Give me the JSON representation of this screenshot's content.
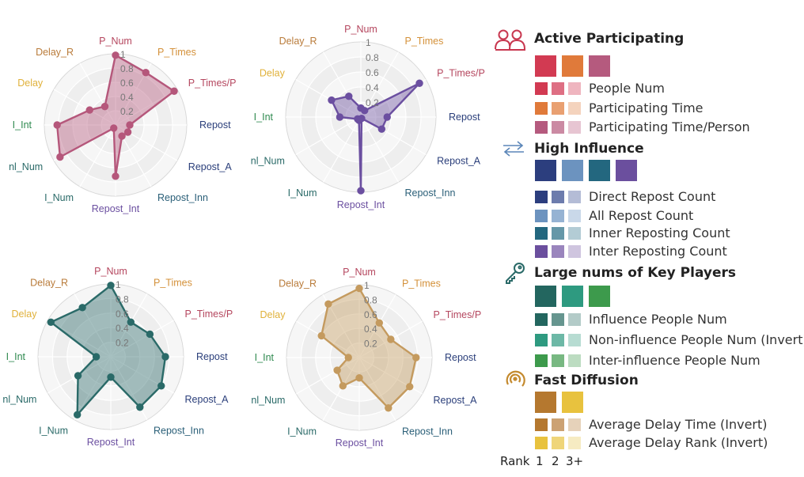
{
  "chart_data": [
    {
      "type": "radar",
      "axes": [
        "P_Num",
        "P_Times",
        "P_Times/P",
        "Repost",
        "Repost_A",
        "Repost_Inn",
        "Repost_Int",
        "I_Num",
        "nI_Num",
        "I_Int",
        "Delay",
        "Delay_R"
      ],
      "axis_labels": [
        "P_Num",
        "P_Times",
        "P_Times/P",
        "Repost",
        "Repost_A",
        "Repost_Inn",
        "Repost_Int",
        "I_Num",
        "nl_Num",
        "I_Int",
        "Delay",
        "Delay_R"
      ],
      "rticks": [
        "0.2",
        "0.4",
        "0.6",
        "0.8",
        "1"
      ],
      "rlim": [
        0,
        1
      ],
      "color": "#b5577b",
      "values": [
        0.98,
        0.85,
        0.95,
        0.2,
        0.2,
        0.18,
        0.72,
        0.05,
        0.9,
        0.82,
        0.42,
        0.3
      ]
    },
    {
      "type": "radar",
      "axes": [
        "P_Num",
        "P_Times",
        "P_Times/P",
        "Repost",
        "Repost_A",
        "Repost_Inn",
        "Repost_Int",
        "I_Num",
        "nI_Num",
        "I_Int",
        "Delay",
        "Delay_R"
      ],
      "axis_labels": [
        "P_Num",
        "P_Times",
        "P_Times/P",
        "Repost",
        "Repost_A",
        "Repost_Inn",
        "Repost_Int",
        "I_Num",
        "nl_Num",
        "I_Int",
        "Delay",
        "Delay_R"
      ],
      "rticks": [
        "0.2",
        "0.4",
        "0.6",
        "0.8",
        "1"
      ],
      "rlim": [
        0,
        1
      ],
      "color": "#6b4fa0",
      "values": [
        0.12,
        0.1,
        0.9,
        0.35,
        0.32,
        0.02,
        0.98,
        0.05,
        0.05,
        0.28,
        0.45,
        0.32
      ]
    },
    {
      "type": "radar",
      "axes": [
        "P_Num",
        "P_Times",
        "P_Times/P",
        "Repost",
        "Repost_A",
        "Repost_Inn",
        "Repost_Int",
        "I_Num",
        "nI_Num",
        "I_Int",
        "Delay",
        "Delay_R"
      ],
      "axis_labels": [
        "P_Num",
        "P_Times",
        "P_Times/P",
        "Repost",
        "Repost_A",
        "Repost_Inn",
        "Repost_Int",
        "I_Num",
        "nl_Num",
        "I_Int",
        "Delay",
        "Delay_R"
      ],
      "rticks": [
        "0.2",
        "0.4",
        "0.6",
        "0.8",
        "1"
      ],
      "rlim": [
        0,
        1
      ],
      "color": "#2a6a68",
      "values": [
        0.98,
        0.55,
        0.62,
        0.75,
        0.8,
        0.8,
        0.28,
        0.92,
        0.52,
        0.2,
        0.95,
        0.78
      ]
    },
    {
      "type": "radar",
      "axes": [
        "P_Num",
        "P_Times",
        "P_Times/P",
        "Repost",
        "Repost_A",
        "Repost_Inn",
        "Repost_Int",
        "I_Num",
        "nI_Num",
        "I_Int",
        "Delay",
        "Delay_R"
      ],
      "axis_labels": [
        "P_Num",
        "P_Times",
        "P_Times/P",
        "Repost",
        "Repost_A",
        "Repost_Inn",
        "Repost_Int",
        "I_Num",
        "nl_Num",
        "I_Int",
        "Delay",
        "Delay_R"
      ],
      "rticks": [
        "0.2",
        "0.4",
        "0.6",
        "0.8",
        "1"
      ],
      "rlim": [
        0,
        1
      ],
      "color": "#c49a5e",
      "values": [
        0.95,
        0.55,
        0.5,
        0.78,
        0.8,
        0.8,
        0.28,
        0.45,
        0.35,
        0.15,
        0.6,
        0.85
      ]
    }
  ],
  "axis_label_colors": [
    "#b5475f",
    "#d4913a",
    "#b5475f",
    "#2a3e7a",
    "#2a3e7a",
    "#2a5f78",
    "#6b4fa0",
    "#2a6a68",
    "#2a6a68",
    "#2f8a50",
    "#e0b13a",
    "#b97b3a"
  ],
  "legend": {
    "sections": [
      {
        "title": "Active Participating",
        "icon": "people-icon",
        "icon_color": "#c8374f",
        "swatches": [
          "#d23a52",
          "#e07a3a",
          "#b55a7e"
        ],
        "rows": [
          {
            "label": "People Num",
            "colors": [
              "#d23a52",
              "#de6f83",
              "#efb5bf"
            ]
          },
          {
            "label": "Participating Time",
            "colors": [
              "#e07a3a",
              "#e9a071",
              "#f4d3bd"
            ]
          },
          {
            "label": "Participating Time/Person",
            "colors": [
              "#b55a7e",
              "#cb8aa3",
              "#e7c5d2"
            ]
          }
        ]
      },
      {
        "title": "High Influence",
        "icon": "repost-arrows-icon",
        "icon_color": "#5b86b8",
        "swatches": [
          "#2c3e7e",
          "#6c93bf",
          "#23677f",
          "#6b4f9e"
        ],
        "rows": [
          {
            "label": "Direct Repost Count",
            "colors": [
              "#2c3e7e",
              "#6d7cad",
              "#b4bcd6"
            ]
          },
          {
            "label": "All Repost Count",
            "colors": [
              "#6c93bf",
              "#96b3d3",
              "#c9d8e9"
            ]
          },
          {
            "label": "Inner Reposting Count",
            "colors": [
              "#23677f",
              "#6597a8",
              "#b3ccd5"
            ]
          },
          {
            "label": "Inter Reposting Count",
            "colors": [
              "#6b4f9e",
              "#9a85bd",
              "#cfc5df"
            ]
          }
        ]
      },
      {
        "title": "Large nums of Key Players",
        "icon": "key-icon",
        "icon_color": "#2a6a68",
        "swatches": [
          "#23665f",
          "#2e9a80",
          "#3d9a4c"
        ],
        "rows": [
          {
            "label": "Influence People Num",
            "colors": [
              "#23665f",
              "#66958f",
              "#b3cbc8"
            ]
          },
          {
            "label": "Non-influence People Num (Invert)",
            "colors": [
              "#2e9a80",
              "#6db8a6",
              "#b7dcd2"
            ]
          },
          {
            "label": "Inter-influence People Num",
            "colors": [
              "#3d9a4c",
              "#78b882",
              "#bcdcc1"
            ]
          }
        ]
      },
      {
        "title": "Fast Diffusion",
        "icon": "diffusion-swirl-icon",
        "icon_color": "#c48a2e",
        "swatches": [
          "#b5782f",
          "#e8c23e"
        ],
        "rows": [
          {
            "label": "Average Delay Time (Invert)",
            "colors": [
              "#b5782f",
              "#cca273",
              "#e6d2ba"
            ]
          },
          {
            "label": "Average Delay Rank (Invert)",
            "colors": [
              "#e8c23e",
              "#efd57a",
              "#f6ebc2"
            ]
          }
        ]
      }
    ],
    "rank": {
      "label": "Rank",
      "values": [
        "1",
        "2",
        "3+"
      ]
    }
  }
}
